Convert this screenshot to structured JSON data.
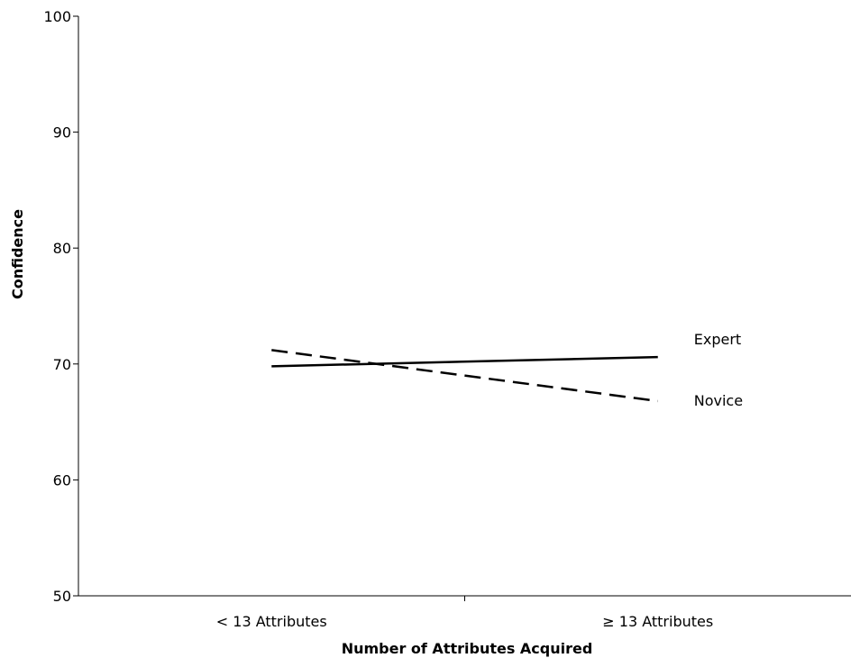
{
  "chart_data": {
    "type": "line",
    "categories": [
      "< 13 Attributes",
      "≥ 13 Attributes"
    ],
    "series": [
      {
        "name": "Expert",
        "values": [
          69.8,
          70.6
        ],
        "dash": "solid",
        "color": "#000000"
      },
      {
        "name": "Novice",
        "values": [
          71.2,
          66.8
        ],
        "dash": "dashed",
        "color": "#000000"
      }
    ],
    "ylim": [
      50,
      100
    ],
    "yticks": [
      50,
      60,
      70,
      80,
      90,
      100
    ],
    "title": "",
    "xlabel": "Number of Attributes Acquired",
    "ylabel": "Confidence",
    "grid": false,
    "legend": "direct labels at line ends"
  }
}
